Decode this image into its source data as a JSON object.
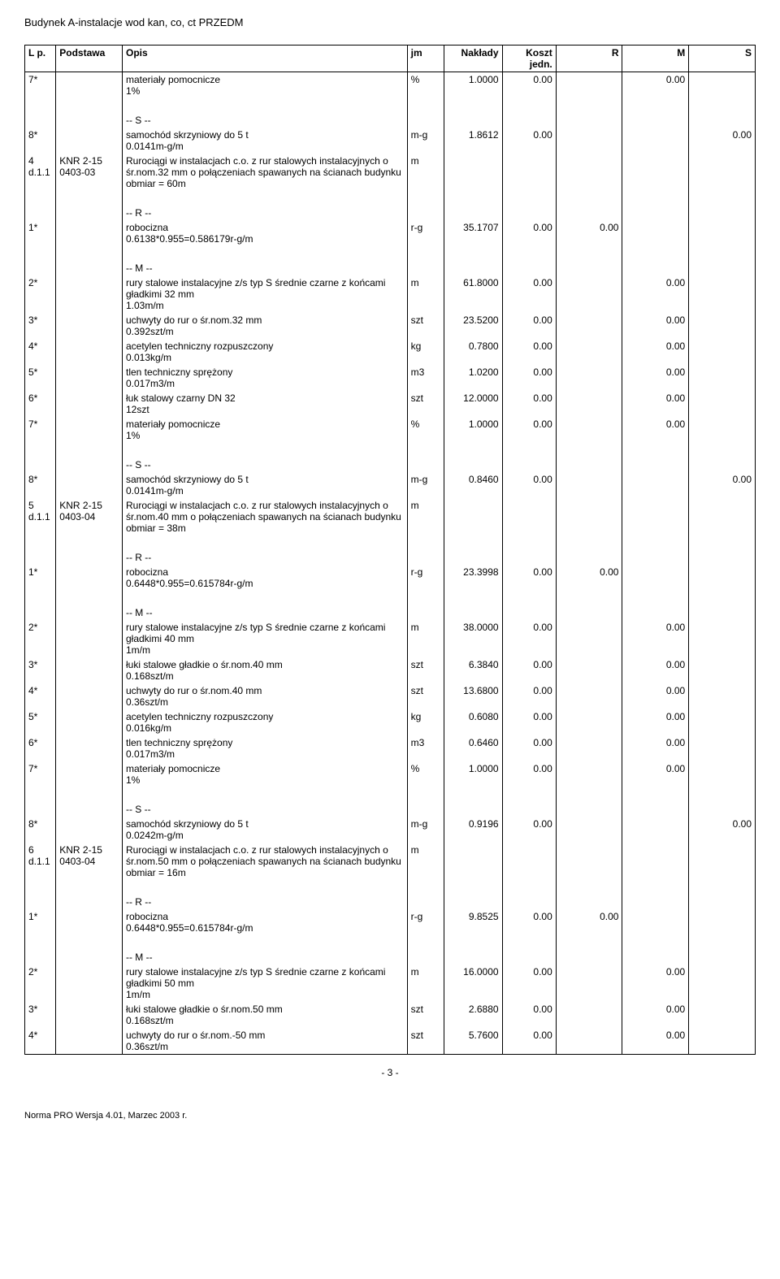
{
  "title": "Budynek A-instalacje wod kan, co, ct PRZEDM",
  "page_number": "- 3 -",
  "footer": "Norma PRO Wersja 4.01, Marzec 2003 r.",
  "headers": {
    "lp": "L p.",
    "podstawa": "Podstawa",
    "opis": "Opis",
    "jm": "jm",
    "naklady": "Nakłady",
    "koszt": "Koszt jedn.",
    "r": "R",
    "m": "M",
    "s": "S"
  },
  "rows": [
    {
      "lp": "7*",
      "podstawa": "",
      "opis": "materiały pomocnicze\n1%",
      "jm": "%",
      "naklady": "1.0000",
      "koszt": "0.00",
      "r": "",
      "m": "0.00",
      "s": ""
    },
    {
      "lp": "",
      "podstawa": "",
      "opis": "",
      "jm": "",
      "naklady": "",
      "koszt": "",
      "r": "",
      "m": "",
      "s": ""
    },
    {
      "lp": "",
      "podstawa": "",
      "opis": "-- S --",
      "jm": "",
      "naklady": "",
      "koszt": "",
      "r": "",
      "m": "",
      "s": ""
    },
    {
      "lp": "8*",
      "podstawa": "",
      "opis": "samochód skrzyniowy do 5 t\n0.0141m-g/m",
      "jm": "m-g",
      "naklady": "1.8612",
      "koszt": "0.00",
      "r": "",
      "m": "",
      "s": "0.00"
    },
    {
      "lp": "4 d.1.1",
      "podstawa": "KNR 2-15 0403-03",
      "opis": "Rurociągi w instalacjach c.o. z rur stalowych instalacyjnych o śr.nom.32 mm o połączeniach spawanych na ścianach budynku\nobmiar = 60m",
      "jm": "m",
      "naklady": "",
      "koszt": "",
      "r": "",
      "m": "",
      "s": ""
    },
    {
      "lp": "",
      "podstawa": "",
      "opis": "",
      "jm": "",
      "naklady": "",
      "koszt": "",
      "r": "",
      "m": "",
      "s": ""
    },
    {
      "lp": "",
      "podstawa": "",
      "opis": "-- R --",
      "jm": "",
      "naklady": "",
      "koszt": "",
      "r": "",
      "m": "",
      "s": ""
    },
    {
      "lp": "1*",
      "podstawa": "",
      "opis": "robocizna\n0.6138*0.955=0.586179r-g/m",
      "jm": "r-g",
      "naklady": "35.1707",
      "koszt": "0.00",
      "r": "0.00",
      "m": "",
      "s": ""
    },
    {
      "lp": "",
      "podstawa": "",
      "opis": "",
      "jm": "",
      "naklady": "",
      "koszt": "",
      "r": "",
      "m": "",
      "s": ""
    },
    {
      "lp": "",
      "podstawa": "",
      "opis": "-- M --",
      "jm": "",
      "naklady": "",
      "koszt": "",
      "r": "",
      "m": "",
      "s": ""
    },
    {
      "lp": "2*",
      "podstawa": "",
      "opis": "rury stalowe instalacyjne z/s typ S średnie czarne z końcami gładkimi 32 mm\n1.03m/m",
      "jm": "m",
      "naklady": "61.8000",
      "koszt": "0.00",
      "r": "",
      "m": "0.00",
      "s": ""
    },
    {
      "lp": "3*",
      "podstawa": "",
      "opis": "uchwyty do rur o śr.nom.32 mm\n0.392szt/m",
      "jm": "szt",
      "naklady": "23.5200",
      "koszt": "0.00",
      "r": "",
      "m": "0.00",
      "s": ""
    },
    {
      "lp": "4*",
      "podstawa": "",
      "opis": "acetylen techniczny rozpuszczony\n0.013kg/m",
      "jm": "kg",
      "naklady": "0.7800",
      "koszt": "0.00",
      "r": "",
      "m": "0.00",
      "s": ""
    },
    {
      "lp": "5*",
      "podstawa": "",
      "opis": "tlen techniczny sprężony\n0.017m3/m",
      "jm": "m3",
      "naklady": "1.0200",
      "koszt": "0.00",
      "r": "",
      "m": "0.00",
      "s": ""
    },
    {
      "lp": "6*",
      "podstawa": "",
      "opis": "łuk stalowy czarny DN 32\n12szt",
      "jm": "szt",
      "naklady": "12.0000",
      "koszt": "0.00",
      "r": "",
      "m": "0.00",
      "s": ""
    },
    {
      "lp": "7*",
      "podstawa": "",
      "opis": "materiały pomocnicze\n1%",
      "jm": "%",
      "naklady": "1.0000",
      "koszt": "0.00",
      "r": "",
      "m": "0.00",
      "s": ""
    },
    {
      "lp": "",
      "podstawa": "",
      "opis": "",
      "jm": "",
      "naklady": "",
      "koszt": "",
      "r": "",
      "m": "",
      "s": ""
    },
    {
      "lp": "",
      "podstawa": "",
      "opis": "-- S --",
      "jm": "",
      "naklady": "",
      "koszt": "",
      "r": "",
      "m": "",
      "s": ""
    },
    {
      "lp": "8*",
      "podstawa": "",
      "opis": "samochód skrzyniowy do 5 t\n0.0141m-g/m",
      "jm": "m-g",
      "naklady": "0.8460",
      "koszt": "0.00",
      "r": "",
      "m": "",
      "s": "0.00"
    },
    {
      "lp": "5 d.1.1",
      "podstawa": "KNR 2-15 0403-04",
      "opis": "Rurociągi w instalacjach c.o. z rur stalowych instalacyjnych o śr.nom.40 mm o połączeniach spawanych na ścianach budynku\nobmiar = 38m",
      "jm": "m",
      "naklady": "",
      "koszt": "",
      "r": "",
      "m": "",
      "s": ""
    },
    {
      "lp": "",
      "podstawa": "",
      "opis": "",
      "jm": "",
      "naklady": "",
      "koszt": "",
      "r": "",
      "m": "",
      "s": ""
    },
    {
      "lp": "",
      "podstawa": "",
      "opis": "-- R --",
      "jm": "",
      "naklady": "",
      "koszt": "",
      "r": "",
      "m": "",
      "s": ""
    },
    {
      "lp": "1*",
      "podstawa": "",
      "opis": "robocizna\n0.6448*0.955=0.615784r-g/m",
      "jm": "r-g",
      "naklady": "23.3998",
      "koszt": "0.00",
      "r": "0.00",
      "m": "",
      "s": ""
    },
    {
      "lp": "",
      "podstawa": "",
      "opis": "",
      "jm": "",
      "naklady": "",
      "koszt": "",
      "r": "",
      "m": "",
      "s": ""
    },
    {
      "lp": "",
      "podstawa": "",
      "opis": "-- M --",
      "jm": "",
      "naklady": "",
      "koszt": "",
      "r": "",
      "m": "",
      "s": ""
    },
    {
      "lp": "2*",
      "podstawa": "",
      "opis": "rury stalowe instalacyjne z/s typ S średnie czarne z końcami gładkimi 40 mm\n1m/m",
      "jm": "m",
      "naklady": "38.0000",
      "koszt": "0.00",
      "r": "",
      "m": "0.00",
      "s": ""
    },
    {
      "lp": "3*",
      "podstawa": "",
      "opis": "łuki stalowe gładkie o śr.nom.40 mm\n0.168szt/m",
      "jm": "szt",
      "naklady": "6.3840",
      "koszt": "0.00",
      "r": "",
      "m": "0.00",
      "s": ""
    },
    {
      "lp": "4*",
      "podstawa": "",
      "opis": "uchwyty do rur o śr.nom.40 mm\n0.36szt/m",
      "jm": "szt",
      "naklady": "13.6800",
      "koszt": "0.00",
      "r": "",
      "m": "0.00",
      "s": ""
    },
    {
      "lp": "5*",
      "podstawa": "",
      "opis": "acetylen techniczny rozpuszczony\n0.016kg/m",
      "jm": "kg",
      "naklady": "0.6080",
      "koszt": "0.00",
      "r": "",
      "m": "0.00",
      "s": ""
    },
    {
      "lp": "6*",
      "podstawa": "",
      "opis": "tlen techniczny sprężony\n0.017m3/m",
      "jm": "m3",
      "naklady": "0.6460",
      "koszt": "0.00",
      "r": "",
      "m": "0.00",
      "s": ""
    },
    {
      "lp": "7*",
      "podstawa": "",
      "opis": "materiały pomocnicze\n1%",
      "jm": "%",
      "naklady": "1.0000",
      "koszt": "0.00",
      "r": "",
      "m": "0.00",
      "s": ""
    },
    {
      "lp": "",
      "podstawa": "",
      "opis": "",
      "jm": "",
      "naklady": "",
      "koszt": "",
      "r": "",
      "m": "",
      "s": ""
    },
    {
      "lp": "",
      "podstawa": "",
      "opis": "-- S --",
      "jm": "",
      "naklady": "",
      "koszt": "",
      "r": "",
      "m": "",
      "s": ""
    },
    {
      "lp": "8*",
      "podstawa": "",
      "opis": "samochód skrzyniowy do 5 t\n0.0242m-g/m",
      "jm": "m-g",
      "naklady": "0.9196",
      "koszt": "0.00",
      "r": "",
      "m": "",
      "s": "0.00"
    },
    {
      "lp": "6 d.1.1",
      "podstawa": "KNR 2-15 0403-04",
      "opis": "Rurociągi w instalacjach c.o. z rur stalowych instalacyjnych o śr.nom.50 mm o połączeniach spawanych na ścianach budynku\nobmiar = 16m",
      "jm": "m",
      "naklady": "",
      "koszt": "",
      "r": "",
      "m": "",
      "s": ""
    },
    {
      "lp": "",
      "podstawa": "",
      "opis": "",
      "jm": "",
      "naklady": "",
      "koszt": "",
      "r": "",
      "m": "",
      "s": ""
    },
    {
      "lp": "",
      "podstawa": "",
      "opis": "-- R --",
      "jm": "",
      "naklady": "",
      "koszt": "",
      "r": "",
      "m": "",
      "s": ""
    },
    {
      "lp": "1*",
      "podstawa": "",
      "opis": "robocizna\n0.6448*0.955=0.615784r-g/m",
      "jm": "r-g",
      "naklady": "9.8525",
      "koszt": "0.00",
      "r": "0.00",
      "m": "",
      "s": ""
    },
    {
      "lp": "",
      "podstawa": "",
      "opis": "",
      "jm": "",
      "naklady": "",
      "koszt": "",
      "r": "",
      "m": "",
      "s": ""
    },
    {
      "lp": "",
      "podstawa": "",
      "opis": "-- M --",
      "jm": "",
      "naklady": "",
      "koszt": "",
      "r": "",
      "m": "",
      "s": ""
    },
    {
      "lp": "2*",
      "podstawa": "",
      "opis": "rury stalowe instalacyjne z/s typ S średnie czarne z końcami gładkimi 50 mm\n1m/m",
      "jm": "m",
      "naklady": "16.0000",
      "koszt": "0.00",
      "r": "",
      "m": "0.00",
      "s": ""
    },
    {
      "lp": "3*",
      "podstawa": "",
      "opis": "łuki stalowe gładkie o śr.nom.50 mm\n0.168szt/m",
      "jm": "szt",
      "naklady": "2.6880",
      "koszt": "0.00",
      "r": "",
      "m": "0.00",
      "s": ""
    },
    {
      "lp": "4*",
      "podstawa": "",
      "opis": "uchwyty do rur o śr.nom.-50 mm\n0.36szt/m",
      "jm": "szt",
      "naklady": "5.7600",
      "koszt": "0.00",
      "r": "",
      "m": "0.00",
      "s": ""
    }
  ]
}
